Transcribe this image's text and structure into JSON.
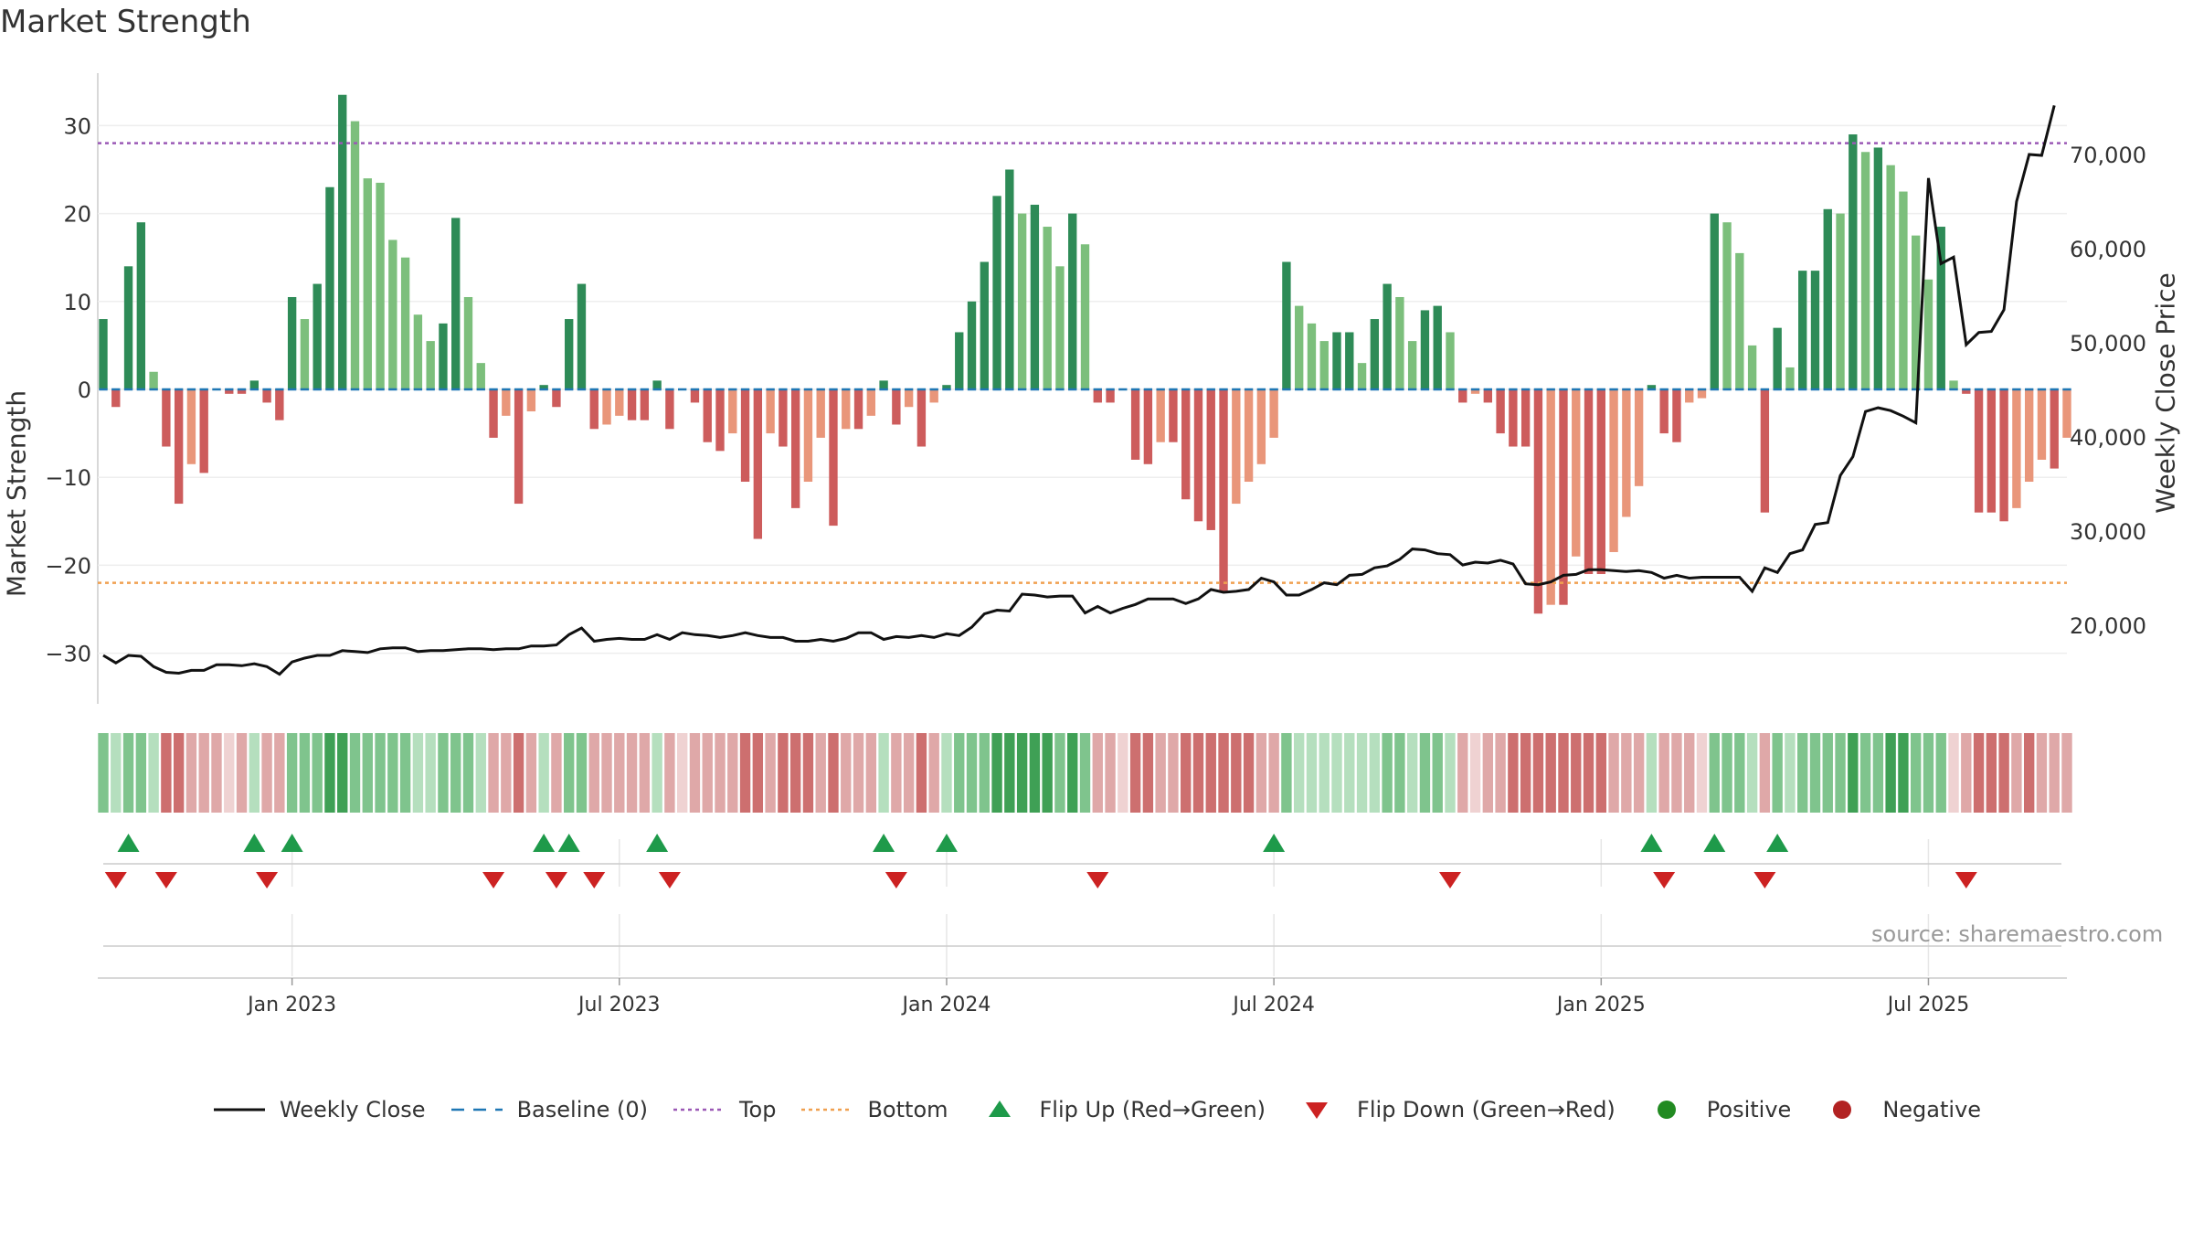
{
  "title": "Market Strength",
  "left_axis_label": "Market Strength",
  "right_axis_label": "Weekly Close Price",
  "source_text": "source: sharemaestro.com",
  "colors": {
    "strong_green": "#2e8b57",
    "light_green": "#7cbf7c",
    "strong_red": "#cd5c5c",
    "light_red": "#e9967a",
    "top_line": "#9b59b6",
    "bottom_line": "#f0a050",
    "baseline": "#1f77b4",
    "flip_up": "#1e9a4a",
    "flip_down": "#cc2222",
    "positive": "#228b22",
    "negative": "#b22222",
    "price_line": "#111111"
  },
  "legend": [
    {
      "label": "Weekly Close",
      "symbol": "line-solid-black"
    },
    {
      "label": "Baseline (0)",
      "symbol": "line-dashed-blue"
    },
    {
      "label": "Top",
      "symbol": "line-dotted-purple"
    },
    {
      "label": "Bottom",
      "symbol": "line-dotted-orange"
    },
    {
      "label": "Flip Up (Red→Green)",
      "symbol": "triangle-up-green"
    },
    {
      "label": "Flip Down (Green→Red)",
      "symbol": "triangle-down-red"
    },
    {
      "label": "Positive",
      "symbol": "circle-green"
    },
    {
      "label": "Negative",
      "symbol": "circle-red"
    }
  ],
  "chart_data": {
    "type": "bar",
    "frequency": "weekly",
    "y_left": {
      "label": "Market Strength",
      "ticks": [
        30,
        20,
        10,
        0,
        -10,
        -20,
        -30
      ],
      "ylim": [
        -36,
        36
      ]
    },
    "y_right": {
      "label": "Weekly Close Price",
      "ticks": [
        20000,
        30000,
        40000,
        50000,
        60000,
        70000
      ],
      "tick_labels": [
        "20,000",
        "30,000",
        "40,000",
        "50,000",
        "60,000",
        "70,000"
      ],
      "ylim": [
        11000,
        81000
      ]
    },
    "x_tick_labels": [
      "Jan 2023",
      "Jul 2023",
      "Jan 2024",
      "Jul 2024",
      "Jan 2025",
      "Jul 2025"
    ],
    "x_tick_index": [
      15,
      41,
      67,
      93,
      119,
      145
    ],
    "top_level": 28,
    "bottom_level": -22,
    "baseline": 0,
    "strength": [
      8,
      -2,
      14,
      19,
      2,
      -6.5,
      -13,
      -8.5,
      -9.5,
      0,
      -0.5,
      -0.5,
      1,
      -1.5,
      -3.5,
      10.5,
      8,
      12,
      23,
      33.5,
      30.5,
      24,
      23.5,
      17,
      15,
      8.5,
      5.5,
      7.5,
      19.5,
      10.5,
      3,
      -5.5,
      -3,
      -13,
      -2.5,
      0.5,
      -2,
      8,
      12,
      -4.5,
      -4,
      -3,
      -3.5,
      -3.5,
      1,
      -4.5,
      0,
      -1.5,
      -6,
      -7,
      -5,
      -10.5,
      -17,
      -5,
      -6.5,
      -13.5,
      -10.5,
      -5.5,
      -15.5,
      -4.5,
      -4.5,
      -3,
      1,
      -4,
      -2,
      -6.5,
      -1.5,
      0.5,
      6.5,
      10,
      14.5,
      22,
      25,
      20,
      21,
      18.5,
      14,
      20,
      16.5,
      -1.5,
      -1.5,
      0,
      -8,
      -8.5,
      -6,
      -6,
      -12.5,
      -15,
      -16,
      -23,
      -13,
      -10.5,
      -8.5,
      -5.5,
      14.5,
      9.5,
      7.5,
      5.5,
      6.5,
      6.5,
      3,
      8,
      12,
      10.5,
      5.5,
      9,
      9.5,
      6.5,
      -1.5,
      -0.5,
      -1.5,
      -5,
      -6.5,
      -6.5,
      -25.5,
      -24.5,
      -24.5,
      -19,
      -21,
      -21,
      -18.5,
      -14.5,
      -11,
      0.5,
      -5,
      -6,
      -1.5,
      -1,
      20,
      19,
      15.5,
      5,
      -14,
      7,
      2.5,
      13.5,
      13.5,
      20.5,
      20,
      29,
      27,
      27.5,
      25.5,
      22.5,
      17.5,
      12.5,
      18.5,
      1,
      -0.5,
      -14,
      -14,
      -15,
      -13.5,
      -10.5,
      -8,
      -9,
      -5.5
    ],
    "weekly_close": [
      16800,
      16000,
      16800,
      16700,
      15600,
      15000,
      14900,
      15200,
      15200,
      15800,
      15800,
      15700,
      15900,
      15600,
      14800,
      16100,
      16500,
      16800,
      16800,
      17300,
      17200,
      17100,
      17500,
      17600,
      17600,
      17200,
      17300,
      17300,
      17400,
      17500,
      17500,
      17400,
      17500,
      17500,
      17800,
      17800,
      17900,
      19000,
      19700,
      18300,
      18500,
      18600,
      18500,
      18500,
      19000,
      18500,
      19200,
      19000,
      18900,
      18700,
      18900,
      19200,
      18900,
      18700,
      18700,
      18300,
      18300,
      18500,
      18300,
      18600,
      19200,
      19200,
      18500,
      18800,
      18700,
      18900,
      18700,
      19100,
      18900,
      19800,
      21200,
      21600,
      21500,
      23300,
      23200,
      23000,
      23100,
      23100,
      21300,
      22000,
      21300,
      21800,
      22200,
      22800,
      22800,
      22800,
      22300,
      22800,
      23800,
      23500,
      23600,
      23800,
      25000,
      24600,
      23200,
      23200,
      23800,
      24500,
      24300,
      25300,
      25400,
      26100,
      26300,
      27000,
      28100,
      28000,
      27600,
      27500,
      26400,
      26700,
      26600,
      26900,
      26500,
      24400,
      24300,
      24600,
      25300,
      25400,
      25900,
      25900,
      25800,
      25700,
      25800,
      25600,
      25000,
      25300,
      25000,
      25100,
      25100,
      25100,
      25100,
      23600,
      26100,
      25600,
      27600,
      28000,
      30700,
      30900,
      35900,
      37900,
      42700,
      43100,
      42800,
      42200,
      41500,
      67500,
      58400,
      59100,
      49800,
      51100,
      51200,
      53500,
      65000,
      70000,
      69900,
      75200
    ],
    "flip_up_index": [
      2,
      12,
      15,
      35,
      37,
      44,
      62,
      67,
      93,
      123,
      128,
      133
    ],
    "flip_down_index": [
      1,
      5,
      13,
      31,
      36,
      39,
      45,
      63,
      79,
      107,
      124,
      132,
      148
    ],
    "strip_categories": [
      1,
      2,
      1,
      1,
      2,
      3,
      3,
      4,
      4,
      4,
      5,
      4,
      2,
      4,
      4,
      1,
      1,
      1,
      0,
      0,
      1,
      1,
      1,
      1,
      1,
      2,
      2,
      1,
      1,
      1,
      2,
      4,
      4,
      3,
      4,
      2,
      4,
      1,
      1,
      4,
      4,
      4,
      4,
      4,
      2,
      4,
      5,
      4,
      4,
      4,
      4,
      3,
      3,
      4,
      3,
      3,
      3,
      4,
      3,
      4,
      4,
      4,
      2,
      4,
      4,
      3,
      4,
      2,
      1,
      1,
      1,
      0,
      0,
      0,
      0,
      0,
      1,
      0,
      1,
      4,
      4,
      5,
      3,
      3,
      4,
      4,
      3,
      3,
      3,
      3,
      3,
      3,
      4,
      4,
      1,
      2,
      2,
      2,
      2,
      2,
      2,
      2,
      1,
      1,
      2,
      1,
      1,
      2,
      4,
      5,
      4,
      4,
      3,
      3,
      3,
      3,
      3,
      3,
      3,
      3,
      4,
      4,
      4,
      2,
      4,
      4,
      4,
      5,
      1,
      1,
      1,
      2,
      4,
      1,
      2,
      1,
      1,
      1,
      1,
      0,
      1,
      1,
      0,
      0,
      1,
      1,
      1,
      5,
      4,
      3,
      3,
      3,
      4,
      3,
      4,
      4,
      4
    ]
  }
}
